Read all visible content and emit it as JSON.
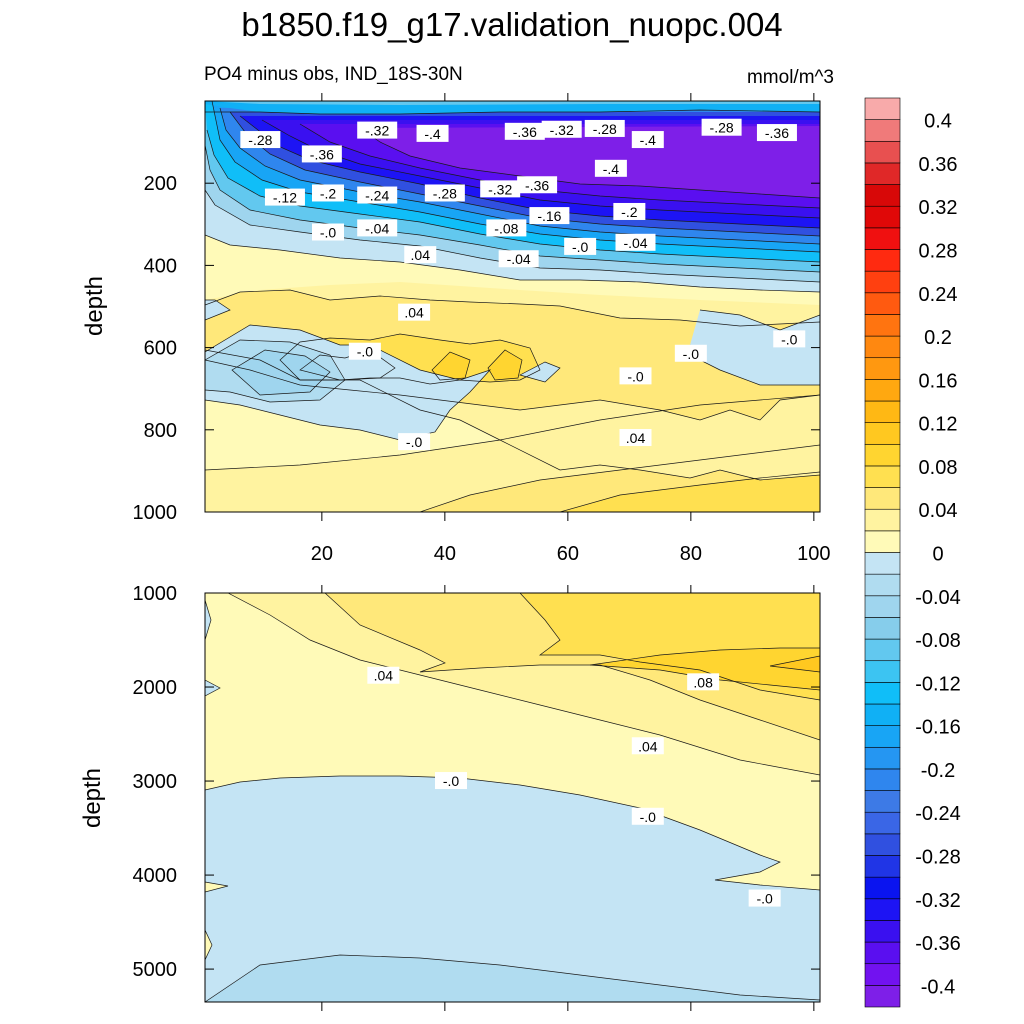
{
  "title": "b1850.f19_g17.validation_nuopc.004",
  "subtitle_left": "PO4 minus obs, IND_18S-30N",
  "subtitle_right": "mmol/m^3",
  "chart_data": [
    {
      "type": "contour",
      "panel": "upper",
      "ylabel": "depth",
      "xlim": [
        1,
        101
      ],
      "ylim": [
        1000,
        0
      ],
      "x_ticks": [
        20,
        40,
        60,
        80,
        100
      ],
      "x_tick_labels": [
        "20",
        "40",
        "60",
        "80",
        "100"
      ],
      "y_ticks": [
        200,
        400,
        600,
        800,
        1000
      ],
      "y_tick_labels": [
        "200",
        "400",
        "600",
        "800",
        "1000"
      ],
      "contour_labels": [
        {
          "text": "-.28",
          "x": 10,
          "y": 95
        },
        {
          "text": "-.36",
          "x": 20,
          "y": 130
        },
        {
          "text": "-.32",
          "x": 29,
          "y": 72
        },
        {
          "text": "-.4",
          "x": 38,
          "y": 80
        },
        {
          "text": "-.36",
          "x": 53,
          "y": 75
        },
        {
          "text": "-.32",
          "x": 59,
          "y": 70
        },
        {
          "text": "-.28",
          "x": 66,
          "y": 68
        },
        {
          "text": "-.4",
          "x": 73,
          "y": 95
        },
        {
          "text": "-.28",
          "x": 85,
          "y": 65
        },
        {
          "text": "-.36",
          "x": 94,
          "y": 78
        },
        {
          "text": "-.12",
          "x": 14,
          "y": 235
        },
        {
          "text": "-.2",
          "x": 21,
          "y": 225
        },
        {
          "text": "-.24",
          "x": 29,
          "y": 230
        },
        {
          "text": "-.28",
          "x": 40,
          "y": 225
        },
        {
          "text": "-.32",
          "x": 49,
          "y": 215
        },
        {
          "text": "-.36",
          "x": 55,
          "y": 205
        },
        {
          "text": "-.4",
          "x": 67,
          "y": 165
        },
        {
          "text": "-.0",
          "x": 21,
          "y": 320
        },
        {
          "text": "-.04",
          "x": 29,
          "y": 310
        },
        {
          "text": "-.08",
          "x": 50,
          "y": 310
        },
        {
          "text": "-.16",
          "x": 57,
          "y": 280
        },
        {
          "text": "-.2",
          "x": 70,
          "y": 270
        },
        {
          "text": "-.0",
          "x": 62,
          "y": 355
        },
        {
          "text": "-.04",
          "x": 71,
          "y": 345
        },
        {
          "text": ".04",
          "x": 36,
          "y": 375
        },
        {
          "text": "-.04",
          "x": 52,
          "y": 385
        },
        {
          "text": ".04",
          "x": 35,
          "y": 515
        },
        {
          "text": "-.0",
          "x": 27,
          "y": 610
        },
        {
          "text": "-.0",
          "x": 80,
          "y": 615
        },
        {
          "text": "-.0",
          "x": 96,
          "y": 580
        },
        {
          "text": "-.0",
          "x": 71,
          "y": 670
        },
        {
          "text": "-.0",
          "x": 35,
          "y": 830
        },
        {
          "text": ".04",
          "x": 71,
          "y": 820
        }
      ]
    },
    {
      "type": "contour",
      "panel": "lower",
      "ylabel": "depth",
      "xlim": [
        1,
        101
      ],
      "ylim": [
        5350,
        1000
      ],
      "y_ticks": [
        1000,
        2000,
        3000,
        4000,
        5000
      ],
      "y_tick_labels": [
        "1000",
        "2000",
        "3000",
        "4000",
        "5000"
      ],
      "contour_labels": [
        {
          "text": ".04",
          "x": 30,
          "y": 1880
        },
        {
          "text": ".08",
          "x": 82,
          "y": 1950
        },
        {
          "text": ".04",
          "x": 73,
          "y": 2630
        },
        {
          "text": "-.0",
          "x": 41,
          "y": 3000
        },
        {
          "text": "-.0",
          "x": 73,
          "y": 3380
        },
        {
          "text": "-.0",
          "x": 92,
          "y": 4250
        }
      ]
    },
    {
      "type": "colorbar",
      "levels": [
        -0.42,
        -0.4,
        -0.38,
        -0.36,
        -0.34,
        -0.32,
        -0.3,
        -0.28,
        -0.26,
        -0.24,
        -0.22,
        -0.2,
        -0.18,
        -0.16,
        -0.14,
        -0.12,
        -0.1,
        -0.08,
        -0.06,
        -0.04,
        -0.02,
        0,
        0.02,
        0.04,
        0.06,
        0.08,
        0.1,
        0.12,
        0.14,
        0.16,
        0.18,
        0.2,
        0.22,
        0.24,
        0.26,
        0.28,
        0.3,
        0.32,
        0.34,
        0.36,
        0.38,
        0.4,
        0.42
      ],
      "colors": [
        "#7e1fe8",
        "#7212f0",
        "#5a0ff0",
        "#3a10f0",
        "#1d14f4",
        "#0a14f0",
        "#2035e6",
        "#3050e0",
        "#3a66e6",
        "#3d7ae6",
        "#2f86ee",
        "#2596f2",
        "#18a5f5",
        "#10b0f5",
        "#10bef8",
        "#3cc4f2",
        "#62c8ef",
        "#86cdeb",
        "#9fd5ee",
        "#b0dcf0",
        "#c4e4f4",
        "#fffab8",
        "#fff3a0",
        "#ffe87a",
        "#ffe050",
        "#ffd530",
        "#ffc820",
        "#ffb814",
        "#ffa810",
        "#ff9810",
        "#ff8810",
        "#ff7410",
        "#ff5a10",
        "#ff4010",
        "#ff2a10",
        "#f01010",
        "#e00808",
        "#d80808",
        "#e02828",
        "#e85050",
        "#f07a7a",
        "#f8aaaa"
      ],
      "tick_labels": [
        "-0.4",
        "-0.36",
        "-0.32",
        "-0.28",
        "-0.24",
        "-0.2",
        "-0.16",
        "-0.12",
        "-0.08",
        "-0.04",
        "0",
        "0.04",
        "0.08",
        "0.12",
        "0.16",
        "0.2",
        "0.24",
        "0.28",
        "0.32",
        "0.36",
        "0.4"
      ]
    }
  ]
}
